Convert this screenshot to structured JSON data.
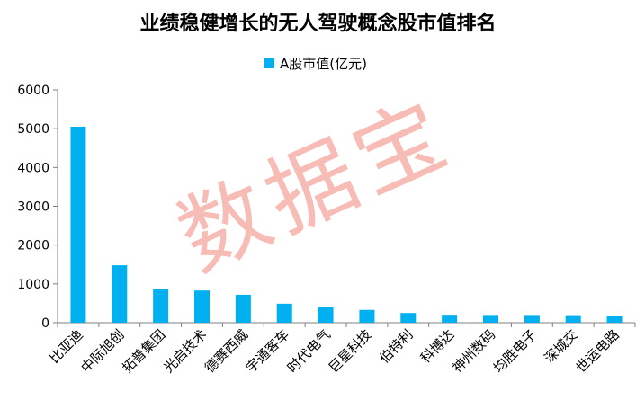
{
  "chart_data": {
    "type": "bar",
    "title": "业绩稳健增长的无人驾驶概念股市值排名",
    "legend": {
      "label": "A股市值(亿元)",
      "position": "top"
    },
    "categories": [
      "比亚迪",
      "中际旭创",
      "拓普集团",
      "光启技术",
      "德赛西威",
      "宇通客车",
      "时代电气",
      "巨星科技",
      "伯特利",
      "科博达",
      "神州数码",
      "均胜电子",
      "深城交",
      "世运电路"
    ],
    "series": [
      {
        "name": "A股市值(亿元)",
        "values": [
          5050,
          1480,
          880,
          830,
          720,
          490,
          400,
          330,
          250,
          205,
          200,
          200,
          195,
          185
        ]
      }
    ],
    "ylim": [
      0,
      6000
    ],
    "yticks": [
      0,
      1000,
      2000,
      3000,
      4000,
      5000,
      6000
    ],
    "grid": false,
    "bar_color": "#00b0f0"
  },
  "watermark": "数据宝"
}
